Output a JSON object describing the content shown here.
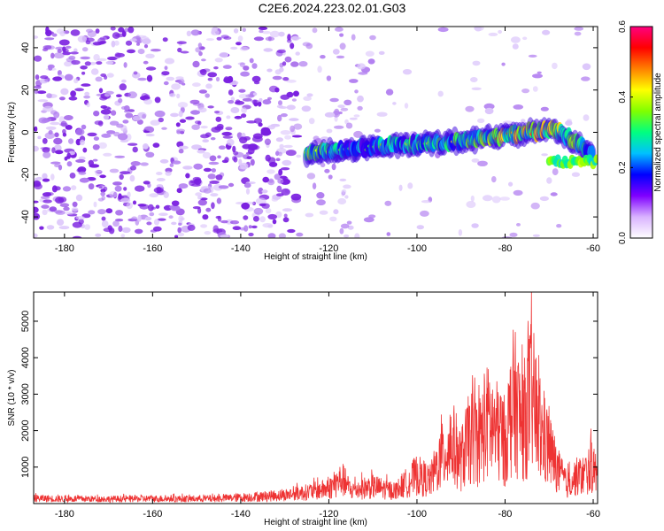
{
  "page_title": "C2E6.2024.223.02.01.G03",
  "chart_data": [
    {
      "type": "heatmap",
      "title": "",
      "xlabel": "Height of straight line (km)",
      "ylabel": "Frequency (Hz)",
      "xlim": [
        -187,
        -59
      ],
      "ylim": [
        -50,
        50
      ],
      "x_ticks": [
        -180,
        -160,
        -140,
        -120,
        -100,
        -80,
        -60
      ],
      "y_ticks": [
        -40,
        -20,
        0,
        20,
        40
      ],
      "colorbar": {
        "label": "Normalized spectral amplitude",
        "range": [
          0,
          0.6
        ],
        "ticks": [
          0,
          0.2,
          0.4,
          0.6
        ],
        "colormap": [
          "#ffffff",
          "#d9b3ff",
          "#7f00ff",
          "#0000ff",
          "#00c0ff",
          "#00ff80",
          "#80ff00",
          "#ffff00",
          "#ff8000",
          "#ff0000",
          "#ff0080"
        ]
      },
      "signal_track": {
        "x": [
          -125,
          -115,
          -105,
          -95,
          -85,
          -75,
          -68,
          -60
        ],
        "freq": [
          -10,
          -8,
          -6,
          -5,
          -3,
          0,
          1,
          -10
        ],
        "peak_amplitude": [
          0.45,
          0.3,
          0.35,
          0.4,
          0.45,
          0.55,
          0.5,
          0.35
        ]
      },
      "grid": false
    },
    {
      "type": "line",
      "title": "",
      "xlabel": "Height of straight line (km)",
      "ylabel": "SNR (10 * v/v)",
      "xlim": [
        -187,
        -59
      ],
      "ylim": [
        0,
        5800
      ],
      "x_ticks": [
        -180,
        -160,
        -140,
        -120,
        -100,
        -80,
        -60
      ],
      "y_ticks": [
        1000,
        2000,
        3000,
        4000,
        5000
      ],
      "color": "#ee3333",
      "series": [
        {
          "x": [
            -187,
            -180,
            -170,
            -160,
            -150,
            -145,
            -140,
            -135,
            -130,
            -125,
            -120,
            -117,
            -115,
            -110,
            -105,
            -100,
            -97,
            -95,
            -92,
            -90,
            -88,
            -86,
            -84,
            -82,
            -80,
            -78,
            -76,
            -74,
            -72,
            -70,
            -68,
            -66,
            -64,
            -62,
            -60,
            -59
          ],
          "values": [
            280,
            250,
            240,
            260,
            250,
            270,
            320,
            380,
            450,
            600,
            780,
            1300,
            700,
            900,
            650,
            1500,
            1200,
            2200,
            3200,
            2300,
            3500,
            3300,
            4300,
            3800,
            3300,
            5500,
            4100,
            5800,
            3700,
            2900,
            1700,
            1000,
            1400,
            1500,
            2000,
            1300
          ]
        }
      ],
      "grid": false
    }
  ]
}
